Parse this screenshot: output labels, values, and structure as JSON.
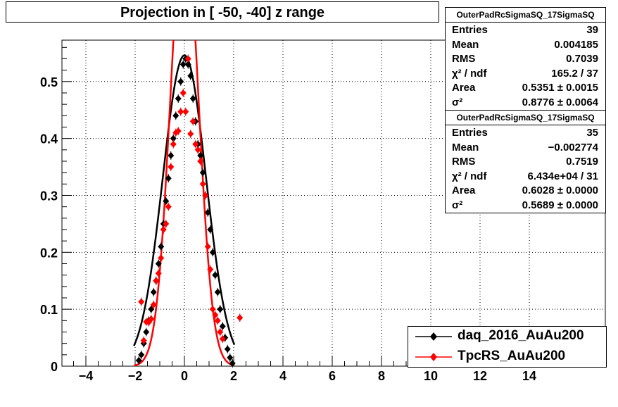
{
  "chart_data": {
    "type": "scatter",
    "title": "Projection in [ -50, -40] z range",
    "xlabel": "",
    "ylabel": "",
    "xlim": [
      -5,
      17
    ],
    "ylim": [
      0,
      0.57
    ],
    "x_ticks": [
      "−4",
      "−2",
      "0",
      "2",
      "4",
      "6",
      "8",
      "10",
      "12",
      "14"
    ],
    "x_tick_values": [
      -4,
      -2,
      0,
      2,
      4,
      6,
      8,
      10,
      12,
      14
    ],
    "y_ticks": [
      "0",
      "0.1",
      "0.2",
      "0.3",
      "0.4",
      "0.5"
    ],
    "y_tick_values": [
      0,
      0.1,
      0.2,
      0.3,
      0.4,
      0.5
    ],
    "grid": true,
    "legend_position": "bottom-right",
    "series": [
      {
        "name": "daq_2016_AuAu200",
        "color": "#000000",
        "marker": "diamond",
        "points": [
          [
            -1.85,
            0.01
          ],
          [
            -1.75,
            0.02
          ],
          [
            -1.65,
            0.04
          ],
          [
            -1.55,
            0.06
          ],
          [
            -1.45,
            0.08
          ],
          [
            -1.35,
            0.1
          ],
          [
            -1.25,
            0.13
          ],
          [
            -1.15,
            0.15
          ],
          [
            -1.05,
            0.18
          ],
          [
            -0.95,
            0.21
          ],
          [
            -0.85,
            0.25
          ],
          [
            -0.75,
            0.29
          ],
          [
            -0.65,
            0.33
          ],
          [
            -0.55,
            0.37
          ],
          [
            -0.45,
            0.4
          ],
          [
            -0.35,
            0.44
          ],
          [
            -0.25,
            0.47
          ],
          [
            -0.15,
            0.5
          ],
          [
            -0.05,
            0.53
          ],
          [
            0.05,
            0.54
          ],
          [
            0.15,
            0.53
          ],
          [
            0.25,
            0.51
          ],
          [
            0.35,
            0.47
          ],
          [
            0.45,
            0.43
          ],
          [
            0.55,
            0.39
          ],
          [
            0.65,
            0.37
          ],
          [
            0.75,
            0.34
          ],
          [
            0.85,
            0.3
          ],
          [
            0.95,
            0.27
          ],
          [
            1.05,
            0.24
          ],
          [
            1.15,
            0.2
          ],
          [
            1.25,
            0.16
          ],
          [
            1.35,
            0.13
          ],
          [
            1.45,
            0.1
          ],
          [
            1.55,
            0.07
          ],
          [
            1.65,
            0.05
          ],
          [
            1.75,
            0.03
          ],
          [
            1.85,
            0.015
          ],
          [
            1.95,
            0.005
          ]
        ]
      },
      {
        "name": "TpcRS_AuAu200",
        "color": "#ff0000",
        "marker": "diamond",
        "points": [
          [
            -1.75,
            0.113
          ],
          [
            -1.65,
            0.045
          ],
          [
            -1.55,
            0.078
          ],
          [
            -1.45,
            0.077
          ],
          [
            -1.35,
            0.083
          ],
          [
            -1.25,
            0.108
          ],
          [
            -1.15,
            0.15
          ],
          [
            -1.05,
            0.163
          ],
          [
            -0.95,
            0.19
          ],
          [
            -0.85,
            0.24
          ],
          [
            -0.75,
            0.25
          ],
          [
            -0.65,
            0.28
          ],
          [
            -0.55,
            0.35
          ],
          [
            -0.45,
            0.39
          ],
          [
            -0.35,
            0.41
          ],
          [
            -0.25,
            0.413
          ],
          [
            -0.15,
            0.447
          ],
          [
            -0.05,
            0.48
          ],
          [
            0.05,
            0.447
          ],
          [
            0.15,
            0.54
          ],
          [
            0.25,
            0.408
          ],
          [
            0.35,
            0.43
          ],
          [
            0.45,
            0.39
          ],
          [
            0.55,
            0.38
          ],
          [
            0.65,
            0.36
          ],
          [
            0.75,
            0.32
          ],
          [
            0.85,
            0.3
          ],
          [
            0.95,
            0.21
          ],
          [
            1.05,
            0.17
          ],
          [
            1.15,
            0.1
          ],
          [
            1.25,
            0.09
          ],
          [
            1.35,
            0.08
          ],
          [
            1.45,
            0.06
          ],
          [
            1.55,
            0.048
          ],
          [
            2.25,
            0.085
          ]
        ]
      }
    ],
    "fits": [
      {
        "series": "daq_2016_AuAu200",
        "function": "gaussian",
        "amplitude": 0.546,
        "mean": 0.0,
        "sigma": 0.8776,
        "color": "#000000"
      },
      {
        "series": "TpcRS_AuAu200",
        "function": "gaussian",
        "amplitude": 0.78,
        "mean": 0.0,
        "sigma": 0.5689,
        "color": "#ff0000"
      }
    ]
  },
  "stats": [
    {
      "title": "OuterPadRcSigmaSQ_17SigmaSQ",
      "rows": [
        {
          "label": "Entries",
          "value": "39"
        },
        {
          "label": "Mean",
          "value": "0.004185"
        },
        {
          "label": "RMS",
          "value": "0.7039"
        },
        {
          "label": "χ² / ndf",
          "value": "165.2 / 37"
        },
        {
          "label": "Area",
          "value": "0.5351 ± 0.0015"
        },
        {
          "label": "σ²",
          "value": "0.8776 ± 0.0064"
        }
      ]
    },
    {
      "title": "OuterPadRcSigmaSQ_17SigmaSQ",
      "rows": [
        {
          "label": "Entries",
          "value": "35"
        },
        {
          "label": "Mean",
          "value": "−0.002774"
        },
        {
          "label": "RMS",
          "value": "0.7519"
        },
        {
          "label": "χ² / ndf",
          "value": "6.434e+04 / 31"
        },
        {
          "label": "Area",
          "value": "0.6028 ± 0.0000"
        },
        {
          "label": "σ²",
          "value": "0.5689 ± 0.0000"
        }
      ]
    }
  ]
}
